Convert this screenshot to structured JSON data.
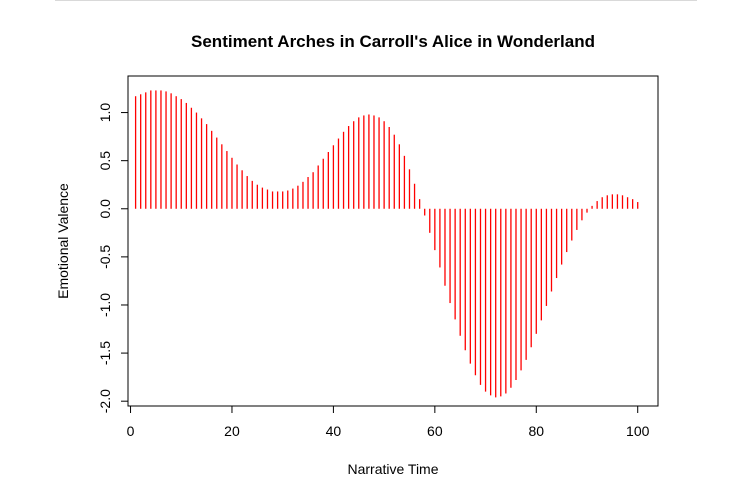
{
  "chart_data": {
    "type": "bar",
    "title": "Sentiment Arches in Carroll's Alice in Wonderland",
    "xlabel": "Narrative Time",
    "ylabel": "Emotional Valence",
    "xlim": [
      -0.5,
      104
    ],
    "ylim": [
      -2.05,
      1.38
    ],
    "x_ticks": [
      0,
      20,
      40,
      60,
      80,
      100
    ],
    "y_ticks": [
      -2.0,
      -1.5,
      -1.0,
      -0.5,
      0.0,
      0.5,
      1.0
    ],
    "y_tick_labels": [
      "-2.0",
      "-1.5",
      "-1.0",
      "-0.5",
      "0.0",
      "0.5",
      "1.0"
    ],
    "grid": false,
    "color": "#ff0000",
    "x": [
      1,
      2,
      3,
      4,
      5,
      6,
      7,
      8,
      9,
      10,
      11,
      12,
      13,
      14,
      15,
      16,
      17,
      18,
      19,
      20,
      21,
      22,
      23,
      24,
      25,
      26,
      27,
      28,
      29,
      30,
      31,
      32,
      33,
      34,
      35,
      36,
      37,
      38,
      39,
      40,
      41,
      42,
      43,
      44,
      45,
      46,
      47,
      48,
      49,
      50,
      51,
      52,
      53,
      54,
      55,
      56,
      57,
      58,
      59,
      60,
      61,
      62,
      63,
      64,
      65,
      66,
      67,
      68,
      69,
      70,
      71,
      72,
      73,
      74,
      75,
      76,
      77,
      78,
      79,
      80,
      81,
      82,
      83,
      84,
      85,
      86,
      87,
      88,
      89,
      90,
      91,
      92,
      93,
      94,
      95,
      96,
      97,
      98,
      99,
      100
    ],
    "values": [
      1.17,
      1.19,
      1.21,
      1.23,
      1.23,
      1.23,
      1.22,
      1.2,
      1.17,
      1.14,
      1.1,
      1.05,
      1.0,
      0.94,
      0.88,
      0.81,
      0.74,
      0.67,
      0.6,
      0.53,
      0.46,
      0.4,
      0.34,
      0.29,
      0.25,
      0.22,
      0.2,
      0.18,
      0.18,
      0.18,
      0.19,
      0.21,
      0.24,
      0.28,
      0.33,
      0.38,
      0.45,
      0.52,
      0.59,
      0.66,
      0.73,
      0.8,
      0.86,
      0.91,
      0.95,
      0.97,
      0.98,
      0.97,
      0.95,
      0.91,
      0.85,
      0.77,
      0.67,
      0.55,
      0.41,
      0.26,
      0.1,
      -0.07,
      -0.25,
      -0.43,
      -0.61,
      -0.8,
      -0.98,
      -1.15,
      -1.32,
      -1.47,
      -1.61,
      -1.73,
      -1.83,
      -1.9,
      -1.94,
      -1.96,
      -1.95,
      -1.92,
      -1.86,
      -1.78,
      -1.68,
      -1.57,
      -1.44,
      -1.3,
      -1.16,
      -1.01,
      -0.86,
      -0.72,
      -0.58,
      -0.45,
      -0.33,
      -0.22,
      -0.12,
      -0.04,
      0.03,
      0.08,
      0.12,
      0.14,
      0.15,
      0.15,
      0.14,
      0.12,
      0.1,
      0.07
    ]
  }
}
